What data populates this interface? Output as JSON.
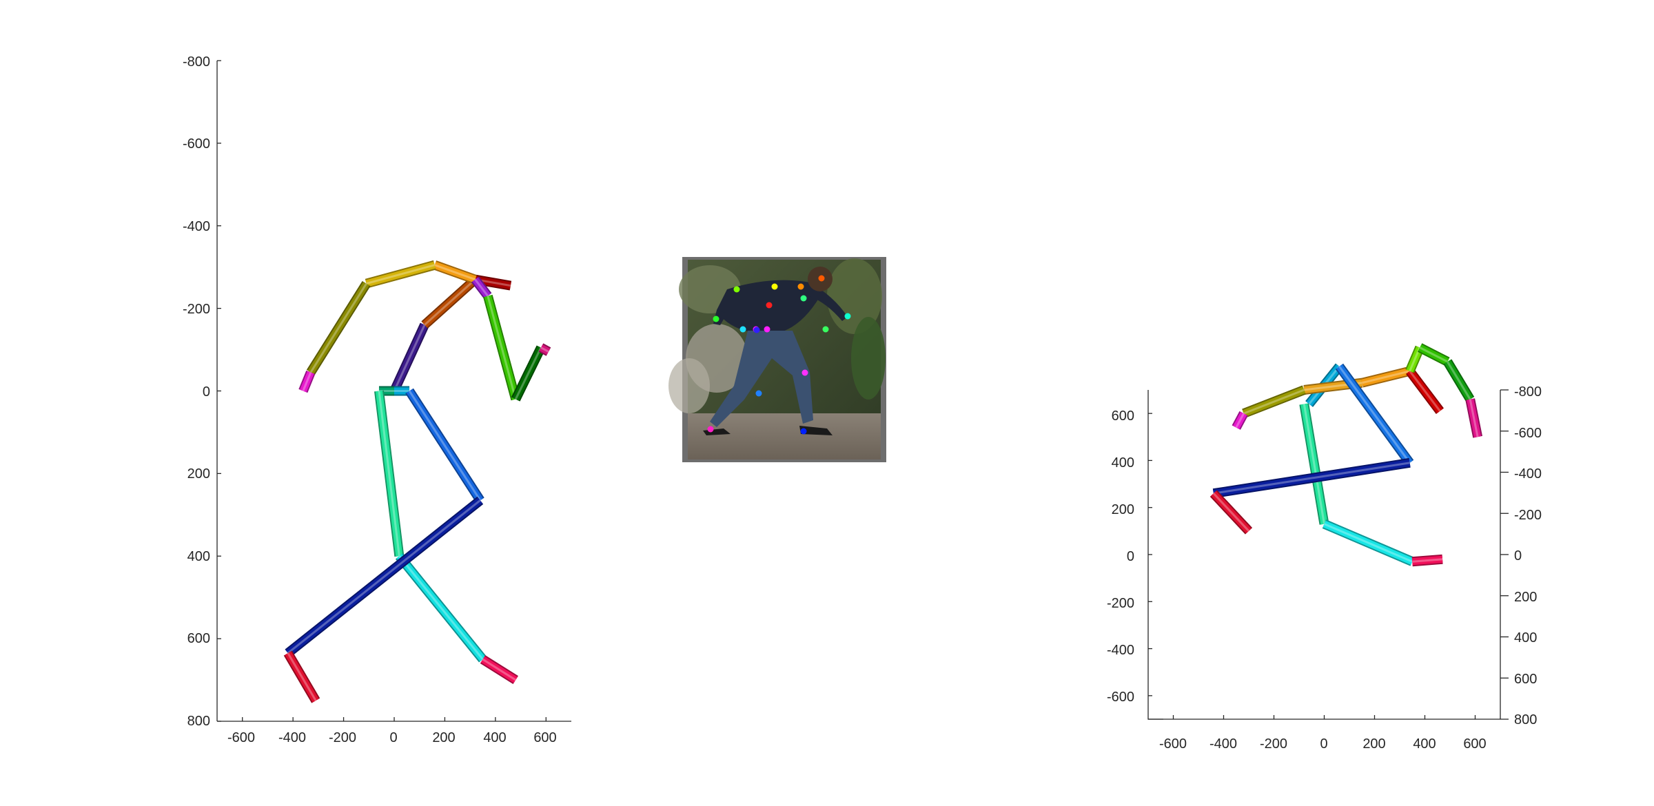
{
  "colors": {
    "axis": "#262626",
    "photo_frame": "#6e6e6e"
  },
  "chart_data": [
    {
      "type": "3d-pose-skeleton",
      "view": "front",
      "xlim": [
        -700,
        700
      ],
      "ylim": [
        -800,
        800
      ],
      "y_reversed": true,
      "xticks": [
        -600,
        -400,
        -200,
        0,
        200,
        400,
        600
      ],
      "yticks": [
        -800,
        -600,
        -400,
        -200,
        0,
        200,
        400,
        600,
        800
      ],
      "xtick_labels": [
        "-600",
        "-400",
        "-200",
        "0",
        "200",
        "400",
        "600"
      ],
      "ytick_labels": [
        "-800",
        "-600",
        "-400",
        "-200",
        "0",
        "200",
        "400",
        "600",
        "800"
      ],
      "bones": [
        {
          "name": "spine",
          "from": [
            0,
            0
          ],
          "to": [
            120,
            -160
          ],
          "color": "#3b1a8a"
        },
        {
          "name": "neck",
          "from": [
            120,
            -160
          ],
          "to": [
            320,
            -270
          ],
          "color": "#b84a00"
        },
        {
          "name": "head",
          "from": [
            320,
            -270
          ],
          "to": [
            460,
            -255
          ],
          "color": "#a80000"
        },
        {
          "name": "left-shoulder",
          "from": [
            320,
            -270
          ],
          "to": [
            160,
            -305
          ],
          "color": "#f39c12"
        },
        {
          "name": "left-upper-arm",
          "from": [
            160,
            -305
          ],
          "to": [
            -110,
            -260
          ],
          "color": "#d4b30a"
        },
        {
          "name": "left-forearm",
          "from": [
            -110,
            -260
          ],
          "to": [
            -330,
            -45
          ],
          "color": "#8a8a00"
        },
        {
          "name": "left-hand",
          "from": [
            -330,
            -45
          ],
          "to": [
            -360,
            0
          ],
          "color": "#e619cc"
        },
        {
          "name": "right-shoulder",
          "from": [
            320,
            -270
          ],
          "to": [
            370,
            -230
          ],
          "color": "#9b1fd1"
        },
        {
          "name": "right-upper-arm",
          "from": [
            370,
            -230
          ],
          "to": [
            480,
            20
          ],
          "color": "#38c400"
        },
        {
          "name": "right-forearm",
          "from": [
            480,
            20
          ],
          "to": [
            580,
            -105
          ],
          "color": "#006b00"
        },
        {
          "name": "right-hand",
          "from": [
            580,
            -105
          ],
          "to": [
            610,
            -95
          ],
          "color": "#d4147a"
        },
        {
          "name": "left-hip",
          "from": [
            0,
            0
          ],
          "to": [
            -60,
            0
          ],
          "color": "#00a36b"
        },
        {
          "name": "left-thigh",
          "from": [
            -60,
            0
          ],
          "to": [
            20,
            400
          ],
          "color": "#21e39a"
        },
        {
          "name": "left-shin",
          "from": [
            20,
            400
          ],
          "to": [
            350,
            650
          ],
          "color": "#12e0e0"
        },
        {
          "name": "left-foot",
          "from": [
            350,
            650
          ],
          "to": [
            480,
            700
          ],
          "color": "#f0105a"
        },
        {
          "name": "right-hip",
          "from": [
            0,
            0
          ],
          "to": [
            60,
            0
          ],
          "color": "#00a7d6"
        },
        {
          "name": "right-thigh",
          "from": [
            60,
            0
          ],
          "to": [
            340,
            265
          ],
          "color": "#1466e0"
        },
        {
          "name": "right-shin",
          "from": [
            340,
            265
          ],
          "to": [
            -420,
            635
          ],
          "color": "#0a1e9e"
        },
        {
          "name": "right-foot",
          "from": [
            -420,
            635
          ],
          "to": [
            -310,
            750
          ],
          "color": "#e01030"
        }
      ]
    },
    {
      "type": "3d-pose-skeleton",
      "view": "oblique",
      "xlim": [
        -700,
        700
      ],
      "ylim_left": [
        -700,
        700
      ],
      "ylim_right": [
        -800,
        800
      ],
      "xticks": [
        -600,
        -400,
        -200,
        0,
        200,
        400,
        600
      ],
      "xtick_labels": [
        "-600",
        "-400",
        "-200",
        "0",
        "200",
        "400",
        "600"
      ],
      "yticks_left": [
        -600,
        -400,
        -200,
        0,
        200,
        400,
        600
      ],
      "ytick_labels_left": [
        "-600",
        "-400",
        "-200",
        "0",
        "200",
        "400",
        "600"
      ],
      "yticks_right": [
        -800,
        -600,
        -400,
        -200,
        0,
        200,
        400,
        600,
        800
      ],
      "ytick_labels_right": [
        "-800",
        "-600",
        "-400",
        "-200",
        "0",
        "200",
        "400",
        "600",
        "800"
      ],
      "bones": [
        {
          "name": "pelvis",
          "from": [
            -60,
            640
          ],
          "to": [
            60,
            800
          ],
          "color": "#00a7d6"
        },
        {
          "name": "torso",
          "from": [
            -80,
            700
          ],
          "to": [
            150,
            730
          ],
          "color": "#e8a21a"
        },
        {
          "name": "neck",
          "from": [
            150,
            730
          ],
          "to": [
            340,
            780
          ],
          "color": "#f39c12"
        },
        {
          "name": "head",
          "from": [
            340,
            780
          ],
          "to": [
            460,
            610
          ],
          "color": "#d00000"
        },
        {
          "name": "left-upper-arm",
          "from": [
            -80,
            700
          ],
          "to": [
            -320,
            600
          ],
          "color": "#9a9a00"
        },
        {
          "name": "left-forearm",
          "from": [
            -320,
            600
          ],
          "to": [
            -350,
            540
          ],
          "color": "#e619cc"
        },
        {
          "name": "right-shoulder",
          "from": [
            340,
            780
          ],
          "to": [
            380,
            880
          ],
          "color": "#70e000"
        },
        {
          "name": "right-upper-arm",
          "from": [
            380,
            880
          ],
          "to": [
            490,
            820
          ],
          "color": "#2fbf00"
        },
        {
          "name": "right-forearm",
          "from": [
            490,
            820
          ],
          "to": [
            580,
            660
          ],
          "color": "#109e10"
        },
        {
          "name": "right-hand",
          "from": [
            580,
            660
          ],
          "to": [
            610,
            500
          ],
          "color": "#e0148a"
        },
        {
          "name": "left-thigh",
          "from": [
            -80,
            640
          ],
          "to": [
            0,
            130
          ],
          "color": "#21e39a"
        },
        {
          "name": "left-shin",
          "from": [
            0,
            130
          ],
          "to": [
            350,
            -30
          ],
          "color": "#18e6e6"
        },
        {
          "name": "left-foot",
          "from": [
            350,
            -30
          ],
          "to": [
            470,
            -20
          ],
          "color": "#f0105a"
        },
        {
          "name": "right-thigh",
          "from": [
            60,
            800
          ],
          "to": [
            340,
            390
          ],
          "color": "#1674e6"
        },
        {
          "name": "right-shin",
          "from": [
            340,
            390
          ],
          "to": [
            -440,
            260
          ],
          "color": "#0a1e9e"
        },
        {
          "name": "right-foot",
          "from": [
            -440,
            260
          ],
          "to": [
            -300,
            100
          ],
          "color": "#e01030"
        }
      ]
    }
  ],
  "photo": {
    "keypoints": [
      {
        "color": "#ff2020"
      },
      {
        "color": "#ffff00"
      },
      {
        "color": "#ff8c00"
      },
      {
        "color": "#ff5a00"
      },
      {
        "color": "#2bff2b"
      },
      {
        "color": "#80ff00"
      },
      {
        "color": "#30ff80"
      },
      {
        "color": "#10ffd0"
      },
      {
        "color": "#38ff60"
      },
      {
        "color": "#ff10ff"
      },
      {
        "color": "#20e0ff"
      },
      {
        "color": "#ff20ff"
      },
      {
        "color": "#3020ff"
      },
      {
        "color": "#ff30ff"
      },
      {
        "color": "#2080ff"
      },
      {
        "color": "#0020ff"
      },
      {
        "color": "#ff20c8"
      }
    ]
  }
}
